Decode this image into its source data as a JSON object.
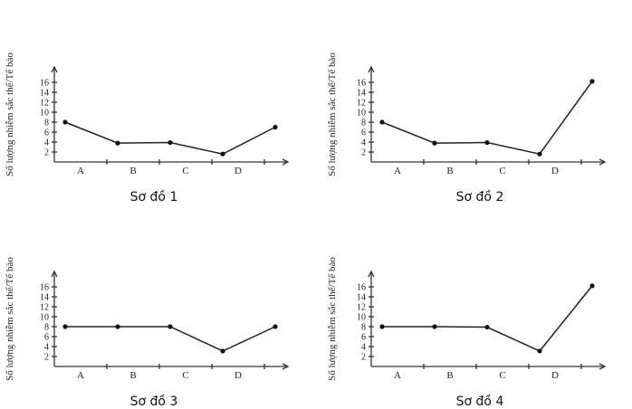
{
  "chart_data": [
    {
      "type": "line",
      "title": "Sơ đồ 1",
      "ylabel": "Số lượng nhiễm sắc thể/Tế bào",
      "categories": [
        "A",
        "B",
        "C",
        "D"
      ],
      "yticks": [
        2,
        4,
        6,
        8,
        10,
        12,
        14,
        16
      ],
      "ylim": [
        0,
        18
      ],
      "points": [
        8,
        3.8,
        3.9,
        1.6,
        7
      ]
    },
    {
      "type": "line",
      "title": "Sơ đồ 2",
      "ylabel": "Số lượng nhiễm sắc thể/Tế bào",
      "categories": [
        "A",
        "B",
        "C",
        "D"
      ],
      "yticks": [
        2,
        4,
        6,
        8,
        10,
        12,
        14,
        16
      ],
      "ylim": [
        0,
        18
      ],
      "points": [
        8,
        3.8,
        3.9,
        1.6,
        16.2
      ]
    },
    {
      "type": "line",
      "title": "Sơ đồ 3",
      "ylabel": "Số lượng nhiễm sắc thể/Tế bào",
      "categories": [
        "A",
        "B",
        "C",
        "D"
      ],
      "yticks": [
        2,
        4,
        6,
        8,
        10,
        12,
        14,
        16
      ],
      "ylim": [
        0,
        18
      ],
      "points": [
        8,
        8,
        8,
        3.1,
        8
      ]
    },
    {
      "type": "line",
      "title": "Sơ đồ 4",
      "ylabel": "Số lượng nhiễm sắc thể/Tế bào",
      "categories": [
        "A",
        "B",
        "C",
        "D"
      ],
      "yticks": [
        2,
        4,
        6,
        8,
        10,
        12,
        14,
        16
      ],
      "ylim": [
        0,
        18
      ],
      "points": [
        8,
        8,
        7.9,
        3.1,
        16.2
      ]
    }
  ]
}
